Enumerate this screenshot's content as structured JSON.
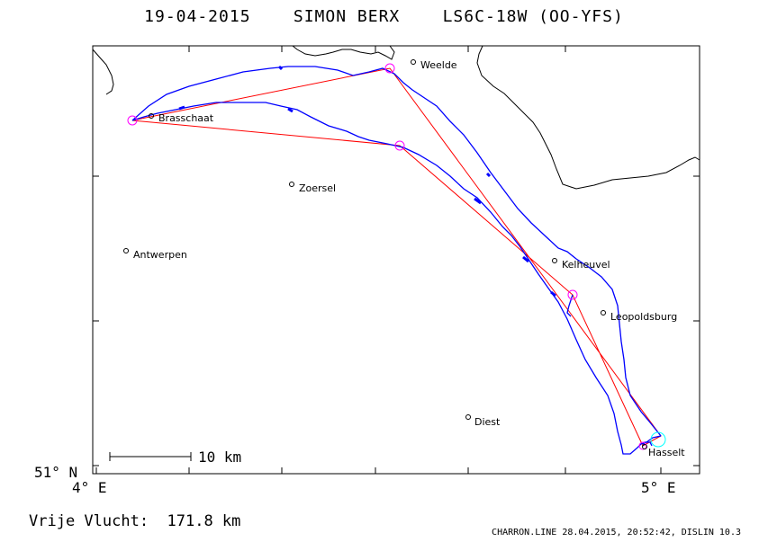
{
  "header": {
    "title": "19-04-2015    SIMON BERX    LS6C-18W (OO-YFS)"
  },
  "map": {
    "axis_labels": {
      "lat_min": "51° N",
      "lon_min": "4° E",
      "lon_max": "5° E"
    },
    "scale_bar_label": "10 km",
    "places": [
      {
        "name": "Weelde"
      },
      {
        "name": "Brasschaat"
      },
      {
        "name": "Zoersel"
      },
      {
        "name": "Antwerpen"
      },
      {
        "name": "Kelheuvel"
      },
      {
        "name": "Leopoldsburg"
      },
      {
        "name": "Diest"
      },
      {
        "name": "Hasselt"
      }
    ],
    "colors": {
      "track": "#0000ff",
      "task": "#ff0000",
      "turnpoint": "#ff00ff",
      "start": "#00ffff",
      "border": "#000000"
    }
  },
  "footer": {
    "distance_text": "Vrije Vlucht:  171.8 km",
    "credits": "CHARRON.LINE 28.04.2015, 20:52:42, DISLIN 10.3"
  }
}
